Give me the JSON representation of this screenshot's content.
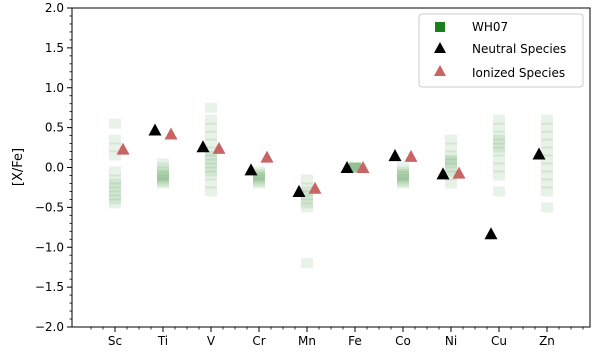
{
  "chart_data": {
    "type": "scatter",
    "title": "",
    "xlabel": "",
    "ylabel": "[X/Fe]",
    "ylim": [
      -2.0,
      2.0
    ],
    "yticks": [
      -2.0,
      -1.5,
      -1.0,
      -0.5,
      0.0,
      0.5,
      1.0,
      1.5,
      2.0
    ],
    "ytick_labels": [
      "−2.0",
      "−1.5",
      "−1.0",
      "−0.5",
      "0.0",
      "0.5",
      "1.0",
      "1.5",
      "2.0"
    ],
    "categories": [
      "Sc",
      "Ti",
      "V",
      "Cr",
      "Mn",
      "Fe",
      "Co",
      "Ni",
      "Cu",
      "Zn"
    ],
    "grid": false,
    "legend_position": "top-right",
    "colors": {
      "wh07": "#1a7f1a",
      "neutral": "#000000",
      "ionized": "#c86464",
      "axis": "#000000"
    },
    "series": [
      {
        "name": "WH07",
        "marker": "square",
        "values": [
          [
            0.55,
            0.35,
            0.25,
            0.15,
            -0.05,
            -0.15,
            -0.2,
            -0.25,
            -0.3,
            -0.35,
            -0.4,
            -0.45
          ],
          [
            0.05,
            0.0,
            -0.05,
            -0.08,
            -0.1,
            -0.12,
            -0.15,
            -0.18,
            -0.2
          ],
          [
            0.75,
            0.6,
            0.5,
            0.4,
            0.3,
            0.2,
            0.15,
            0.1,
            0.05,
            0.0,
            -0.05,
            -0.1,
            -0.2,
            -0.3
          ],
          [
            -0.05,
            -0.08,
            -0.1,
            -0.12,
            -0.15,
            -0.18,
            -0.2
          ],
          [
            -0.15,
            -0.25,
            -0.3,
            -0.35,
            -0.4,
            -0.45,
            -0.5,
            -1.2
          ],
          [
            0.0,
            0.0,
            0.0,
            0.0,
            0.0,
            0.0
          ],
          [
            0.0,
            -0.05,
            -0.08,
            -0.1,
            -0.12,
            -0.15,
            -0.18,
            -0.2
          ],
          [
            0.35,
            0.25,
            0.15,
            0.1,
            0.08,
            0.05,
            0.0,
            -0.05,
            -0.1,
            -0.2
          ],
          [
            0.6,
            0.5,
            0.4,
            0.35,
            0.3,
            0.25,
            0.2,
            0.1,
            0.0,
            -0.1,
            -0.3
          ],
          [
            0.6,
            0.5,
            0.4,
            0.3,
            0.2,
            0.1,
            0.0,
            -0.1,
            -0.2,
            -0.3,
            -0.5
          ]
        ]
      },
      {
        "name": "Neutral Species",
        "marker": "triangle",
        "values": [
          null,
          0.47,
          0.26,
          -0.03,
          -0.3,
          0.0,
          0.15,
          -0.08,
          -0.83,
          0.17
        ]
      },
      {
        "name": "Ionized Species",
        "marker": "triangle",
        "values": [
          0.23,
          0.42,
          0.24,
          0.13,
          -0.26,
          0.0,
          0.14,
          -0.07,
          null,
          null
        ]
      }
    ]
  }
}
